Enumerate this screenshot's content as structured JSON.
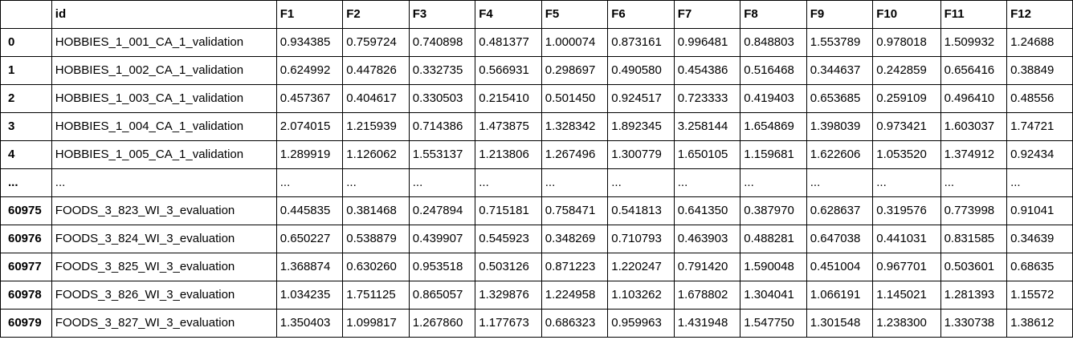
{
  "columns": [
    "",
    "id",
    "F1",
    "F2",
    "F3",
    "F4",
    "F5",
    "F6",
    "F7",
    "F8",
    "F9",
    "F10",
    "F11",
    "F12"
  ],
  "rows": [
    {
      "index": "0",
      "id": "HOBBIES_1_001_CA_1_validation",
      "values": [
        "0.934385",
        "0.759724",
        "0.740898",
        "0.481377",
        "1.000074",
        "0.873161",
        "0.996481",
        "0.848803",
        "1.553789",
        "0.978018",
        "1.509932",
        "1.24688"
      ]
    },
    {
      "index": "1",
      "id": "HOBBIES_1_002_CA_1_validation",
      "values": [
        "0.624992",
        "0.447826",
        "0.332735",
        "0.566931",
        "0.298697",
        "0.490580",
        "0.454386",
        "0.516468",
        "0.344637",
        "0.242859",
        "0.656416",
        "0.38849"
      ]
    },
    {
      "index": "2",
      "id": "HOBBIES_1_003_CA_1_validation",
      "values": [
        "0.457367",
        "0.404617",
        "0.330503",
        "0.215410",
        "0.501450",
        "0.924517",
        "0.723333",
        "0.419403",
        "0.653685",
        "0.259109",
        "0.496410",
        "0.48556"
      ]
    },
    {
      "index": "3",
      "id": "HOBBIES_1_004_CA_1_validation",
      "values": [
        "2.074015",
        "1.215939",
        "0.714386",
        "1.473875",
        "1.328342",
        "1.892345",
        "3.258144",
        "1.654869",
        "1.398039",
        "0.973421",
        "1.603037",
        "1.74721"
      ]
    },
    {
      "index": "4",
      "id": "HOBBIES_1_005_CA_1_validation",
      "values": [
        "1.289919",
        "1.126062",
        "1.553137",
        "1.213806",
        "1.267496",
        "1.300779",
        "1.650105",
        "1.159681",
        "1.622606",
        "1.053520",
        "1.374912",
        "0.92434"
      ]
    },
    {
      "index": "...",
      "id": "...",
      "values": [
        "...",
        "...",
        "...",
        "...",
        "...",
        "...",
        "...",
        "...",
        "...",
        "...",
        "...",
        "..."
      ]
    },
    {
      "index": "60975",
      "id": "FOODS_3_823_WI_3_evaluation",
      "values": [
        "0.445835",
        "0.381468",
        "0.247894",
        "0.715181",
        "0.758471",
        "0.541813",
        "0.641350",
        "0.387970",
        "0.628637",
        "0.319576",
        "0.773998",
        "0.91041"
      ]
    },
    {
      "index": "60976",
      "id": "FOODS_3_824_WI_3_evaluation",
      "values": [
        "0.650227",
        "0.538879",
        "0.439907",
        "0.545923",
        "0.348269",
        "0.710793",
        "0.463903",
        "0.488281",
        "0.647038",
        "0.441031",
        "0.831585",
        "0.34639"
      ]
    },
    {
      "index": "60977",
      "id": "FOODS_3_825_WI_3_evaluation",
      "values": [
        "1.368874",
        "0.630260",
        "0.953518",
        "0.503126",
        "0.871223",
        "1.220247",
        "0.791420",
        "1.590048",
        "0.451004",
        "0.967701",
        "0.503601",
        "0.68635"
      ]
    },
    {
      "index": "60978",
      "id": "FOODS_3_826_WI_3_evaluation",
      "values": [
        "1.034235",
        "1.751125",
        "0.865057",
        "1.329876",
        "1.224958",
        "1.103262",
        "1.678802",
        "1.304041",
        "1.066191",
        "1.145021",
        "1.281393",
        "1.15572"
      ]
    },
    {
      "index": "60979",
      "id": "FOODS_3_827_WI_3_evaluation",
      "values": [
        "1.350403",
        "1.099817",
        "1.267860",
        "1.177673",
        "0.686323",
        "0.959963",
        "1.431948",
        "1.547750",
        "1.301548",
        "1.238300",
        "1.330738",
        "1.38612"
      ]
    }
  ]
}
